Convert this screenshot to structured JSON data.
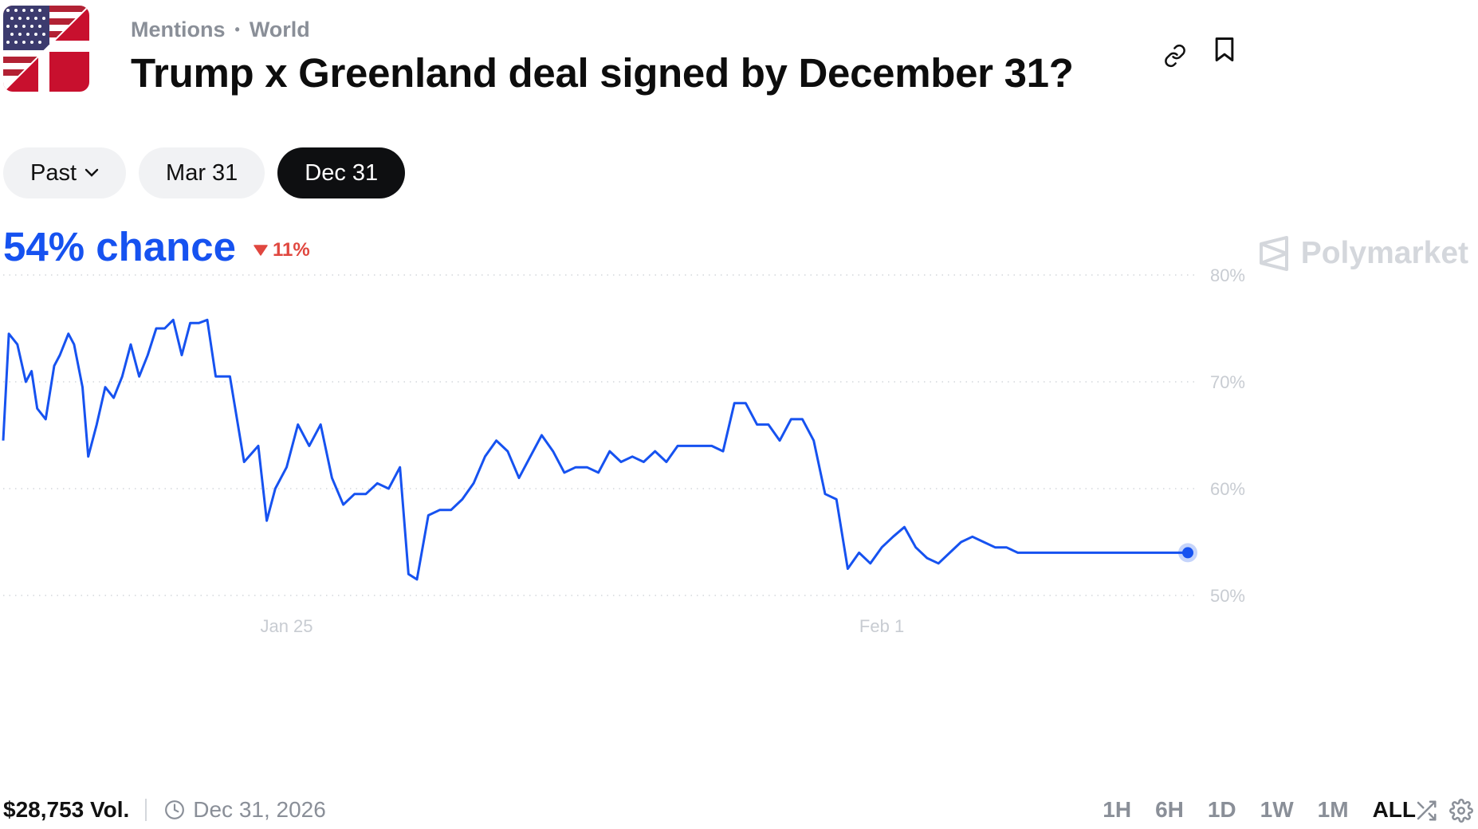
{
  "header": {
    "breadcrumb": [
      "Mentions",
      "World"
    ],
    "title": "Trump x Greenland deal signed by December 31?"
  },
  "date_tabs": [
    {
      "label": "Past",
      "active": false,
      "has_dropdown": true
    },
    {
      "label": "Mar 31",
      "active": false
    },
    {
      "label": "Dec 31",
      "active": true
    }
  ],
  "summary": {
    "chance": "54% chance",
    "delta": "11%",
    "delta_direction": "down"
  },
  "brand": "Polymarket",
  "colors": {
    "accent": "#1652f0",
    "down": "#e0473f",
    "muted": "#8a8f98"
  },
  "chart_data": {
    "type": "line",
    "series": [
      {
        "x": [
          0,
          0.2,
          0.5,
          0.8,
          1,
          1.2,
          1.5,
          1.8,
          2,
          2.3,
          2.5,
          2.8,
          3.0,
          3.3,
          3.6,
          3.9,
          4.2,
          4.5,
          4.8,
          5.1,
          5.4,
          5.7,
          6.0,
          6.3,
          6.6,
          6.9,
          7.2,
          7.5,
          8.0,
          8.5,
          9.0,
          9.3,
          9.6,
          9.8,
          10.0,
          10.4,
          10.8,
          11.2,
          11.6,
          12.0,
          12.4,
          12.8,
          13.2,
          13.6,
          14.0,
          14.3,
          14.6,
          15.0,
          15.4,
          15.8,
          16.2,
          16.6,
          17.0,
          17.4,
          17.8,
          18.2,
          18.6,
          19.0,
          19.4,
          19.8,
          20.2,
          20.6,
          21.0,
          21.4,
          21.8,
          22.2,
          22.6,
          23.0,
          23.4,
          23.8,
          24.2,
          24.6,
          25.0,
          25.4,
          25.8,
          26.2,
          26.6,
          27.0,
          27.4,
          27.8,
          28.2,
          28.6,
          29.0,
          29.4,
          29.8,
          30.2,
          30.6,
          31.0,
          31.4,
          31.8,
          32.2,
          32.6,
          33.0,
          33.4,
          33.8,
          34.2,
          34.6,
          35.0,
          35.4,
          35.8,
          36.2,
          36.6,
          37.0,
          37.4,
          37.8,
          38.2,
          38.6,
          39.0,
          39.4,
          39.8,
          40.2,
          40.6,
          41.0,
          41.4,
          41.8
        ],
        "values": [
          64.5,
          74.5,
          73.5,
          70,
          71,
          67.5,
          66.5,
          71.5,
          72.5,
          74.5,
          73.5,
          69.5,
          63,
          66,
          69.5,
          68.5,
          70.5,
          73.5,
          70.5,
          72.5,
          75,
          75,
          75.8,
          72.5,
          75.5,
          75.5,
          75.8,
          70.5,
          70.5,
          62.5,
          64,
          57,
          60,
          61,
          62,
          66,
          64,
          66,
          61,
          58.5,
          59.5,
          59.5,
          60.5,
          60,
          62,
          52,
          51.5,
          57.5,
          58,
          58,
          59,
          60.5,
          63,
          64.5,
          63.5,
          61,
          63,
          65,
          63.5,
          61.5,
          62,
          62,
          61.5,
          63.5,
          62.5,
          63,
          62.5,
          63.5,
          62.5,
          64,
          64,
          64,
          64,
          63.5,
          68,
          68,
          66,
          66,
          64.5,
          66.5,
          66.5,
          64.5,
          59.5,
          59,
          52.5,
          54,
          53,
          54.5,
          55.5,
          56.4,
          54.5,
          53.5,
          53,
          54,
          55,
          55.5,
          55,
          54.5,
          54.5,
          54,
          54,
          54,
          54,
          54,
          54,
          54,
          54,
          54,
          54,
          54,
          54,
          54,
          54,
          54,
          54
        ]
      }
    ],
    "x_ticks": [
      {
        "value": 10,
        "label": "Jan 25"
      },
      {
        "value": 31,
        "label": "Feb 1"
      }
    ],
    "y_ticks": [
      50,
      60,
      70,
      80
    ],
    "y_tick_format": "{v}%",
    "ylim": [
      49,
      81
    ],
    "xlim": [
      0,
      41.8
    ],
    "grid": "horizontal-dotted",
    "title": "",
    "xlabel": "",
    "ylabel": ""
  },
  "footer": {
    "volume": "$28,753 Vol.",
    "end_date": "Dec 31, 2026",
    "ranges": [
      {
        "label": "1H",
        "active": false
      },
      {
        "label": "6H",
        "active": false
      },
      {
        "label": "1D",
        "active": false
      },
      {
        "label": "1W",
        "active": false
      },
      {
        "label": "1M",
        "active": false
      },
      {
        "label": "ALL",
        "active": true
      }
    ]
  }
}
